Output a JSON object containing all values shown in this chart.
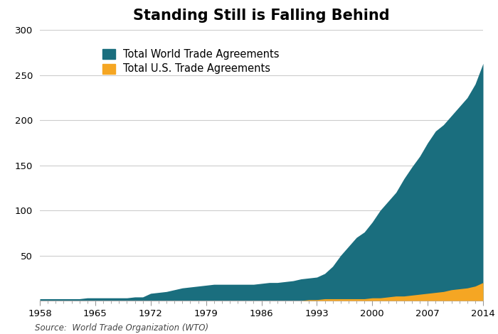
{
  "title": "Standing Still is Falling Behind",
  "source_text": "Source:  World Trade Organization (WTO)",
  "world_color": "#1a6e7e",
  "us_color": "#f5a623",
  "background_color": "#ffffff",
  "ylim": [
    0,
    300
  ],
  "yticks": [
    50,
    100,
    150,
    200,
    250,
    300
  ],
  "legend_labels": [
    "Total World Trade Agreements",
    "Total U.S. Trade Agreements"
  ],
  "years": [
    1958,
    1959,
    1960,
    1961,
    1962,
    1963,
    1964,
    1965,
    1966,
    1967,
    1968,
    1969,
    1970,
    1971,
    1972,
    1973,
    1974,
    1975,
    1976,
    1977,
    1978,
    1979,
    1980,
    1981,
    1982,
    1983,
    1984,
    1985,
    1986,
    1987,
    1988,
    1989,
    1990,
    1991,
    1992,
    1993,
    1994,
    1995,
    1996,
    1997,
    1998,
    1999,
    2000,
    2001,
    2002,
    2003,
    2004,
    2005,
    2006,
    2007,
    2008,
    2009,
    2010,
    2011,
    2012,
    2013,
    2014
  ],
  "world_agreements": [
    2,
    2,
    2,
    2,
    2,
    2,
    3,
    3,
    3,
    3,
    3,
    3,
    4,
    4,
    8,
    9,
    10,
    12,
    14,
    15,
    16,
    17,
    18,
    18,
    18,
    18,
    18,
    18,
    19,
    20,
    20,
    21,
    22,
    24,
    25,
    26,
    30,
    38,
    50,
    60,
    70,
    76,
    87,
    100,
    110,
    120,
    135,
    148,
    160,
    175,
    188,
    195,
    205,
    215,
    225,
    240,
    263
  ],
  "us_agreements": [
    0,
    0,
    0,
    0,
    0,
    0,
    0,
    0,
    0,
    0,
    0,
    0,
    0,
    0,
    0,
    0,
    0,
    0,
    0,
    0,
    0,
    0,
    0,
    0,
    0,
    0,
    0,
    0,
    0,
    0,
    0,
    0,
    0,
    0,
    1,
    1,
    2,
    2,
    2,
    2,
    2,
    2,
    3,
    3,
    4,
    5,
    5,
    6,
    7,
    8,
    9,
    10,
    12,
    13,
    14,
    16,
    20
  ],
  "xtick_years": [
    1958,
    1965,
    1972,
    1979,
    1986,
    1993,
    2000,
    2007,
    2014
  ],
  "title_fontsize": 15,
  "tick_fontsize": 9.5,
  "legend_fontsize": 10.5,
  "source_fontsize": 8.5
}
